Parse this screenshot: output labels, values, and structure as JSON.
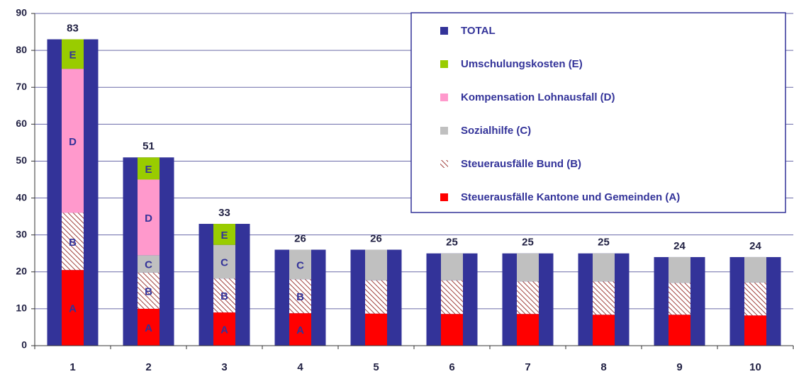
{
  "chart_data": {
    "type": "stacked_bar_with_total",
    "categories": [
      "1",
      "2",
      "3",
      "4",
      "5",
      "6",
      "7",
      "8",
      "9",
      "10"
    ],
    "total": {
      "name": "TOTAL",
      "color": "#333399",
      "values": [
        83,
        51,
        33,
        26,
        26,
        25,
        25,
        25,
        24,
        24
      ]
    },
    "series": [
      {
        "name": "Steuerausfälle Kantone und Gemeinden (A)",
        "color": "#ff0000",
        "hatch": false,
        "values": [
          20.5,
          10,
          9,
          8.8,
          8.7,
          8.6,
          8.6,
          8.4,
          8.4,
          8.2
        ],
        "segment_labels": [
          "A",
          "A",
          "A",
          "A",
          null,
          null,
          null,
          null,
          null,
          null
        ]
      },
      {
        "name": "Steuerausfälle Bund (B)",
        "color": "#a0403c",
        "hatch": true,
        "values": [
          15.5,
          9.8,
          9.2,
          9.2,
          9,
          9.1,
          8.8,
          9,
          8.6,
          8.9
        ],
        "segment_labels": [
          "B",
          "B",
          "B",
          "B",
          null,
          null,
          null,
          null,
          null,
          null
        ]
      },
      {
        "name": "Sozialhilfe (C)",
        "color": "#c0c0c0",
        "hatch": false,
        "values": [
          0,
          4.7,
          9.1,
          8,
          8.3,
          7.3,
          7.6,
          7.6,
          7,
          6.9
        ],
        "segment_labels": [
          null,
          "C",
          "C",
          "C",
          null,
          null,
          null,
          null,
          null,
          null
        ]
      },
      {
        "name": "Kompensation Lohnausfall (D)",
        "color": "#ff99cc",
        "hatch": false,
        "values": [
          39,
          20.5,
          0,
          0,
          0,
          0,
          0,
          0,
          0,
          0
        ],
        "segment_labels": [
          "D",
          "D",
          null,
          null,
          null,
          null,
          null,
          null,
          null,
          null
        ]
      },
      {
        "name": "Umschulungskosten (E)",
        "color": "#99cc00",
        "hatch": false,
        "values": [
          8,
          6,
          5.7,
          0,
          0,
          0,
          0,
          0,
          0,
          0
        ],
        "segment_labels": [
          "E",
          "E",
          "E",
          null,
          null,
          null,
          null,
          null,
          null,
          null
        ]
      }
    ],
    "ylim": [
      0,
      90
    ],
    "yticks": [
      0,
      10,
      20,
      30,
      40,
      50,
      60,
      70,
      80,
      90
    ],
    "grid": true,
    "legend": "top-right"
  }
}
